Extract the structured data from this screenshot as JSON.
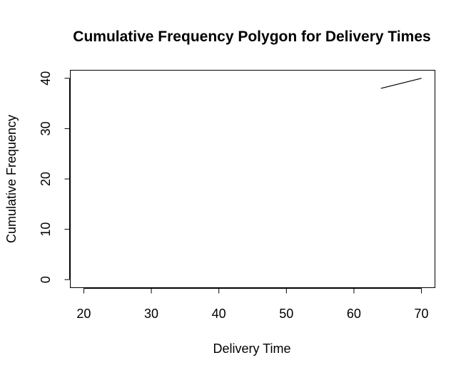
{
  "chart_data": {
    "type": "line",
    "title": "Cumulative Frequency Polygon for Delivery Times",
    "xlabel": "Delivery Time",
    "ylabel": "Cumulative Frequency",
    "xlim": [
      18,
      72
    ],
    "ylim": [
      -1.6,
      41.6
    ],
    "x_ticks": [
      20,
      30,
      40,
      50,
      60,
      70
    ],
    "y_ticks": [
      0,
      10,
      20,
      30,
      40
    ],
    "grid": false,
    "series": [
      {
        "x": [
          64,
          70
        ],
        "y": [
          38,
          40
        ],
        "color": "#000000"
      }
    ]
  }
}
